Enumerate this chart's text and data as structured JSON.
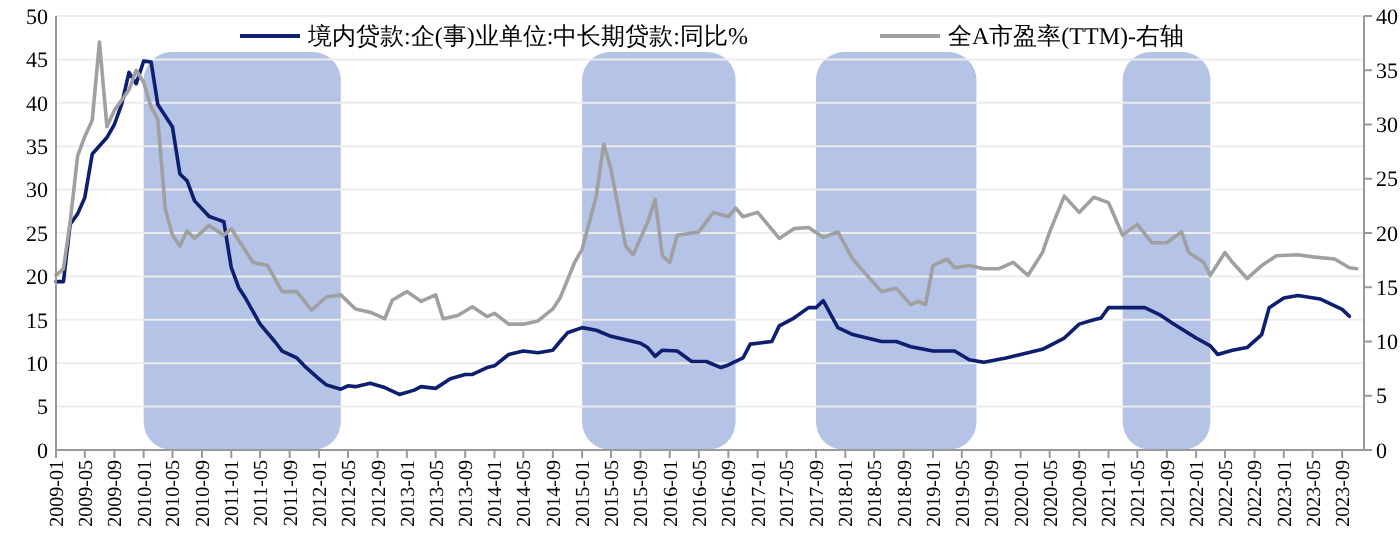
{
  "chart_data": {
    "type": "line",
    "xlim": [
      "2009-01",
      "2023-12"
    ],
    "xticks": [
      "2009-01",
      "2009-05",
      "2009-09",
      "2010-01",
      "2010-05",
      "2010-09",
      "2011-01",
      "2011-05",
      "2011-09",
      "2012-01",
      "2012-05",
      "2012-09",
      "2013-01",
      "2013-05",
      "2013-09",
      "2014-01",
      "2014-05",
      "2014-09",
      "2015-01",
      "2015-05",
      "2015-09",
      "2016-01",
      "2016-05",
      "2016-09",
      "2017-01",
      "2017-05",
      "2017-09",
      "2018-01",
      "2018-05",
      "2018-09",
      "2019-01",
      "2019-05",
      "2019-09",
      "2020-01",
      "2020-05",
      "2020-09",
      "2021-01",
      "2021-05",
      "2021-09",
      "2022-01",
      "2022-05",
      "2022-09",
      "2023-01",
      "2023-05",
      "2023-09"
    ],
    "ylim": [
      0,
      50
    ],
    "yticks": [
      0,
      5,
      10,
      15,
      20,
      25,
      30,
      35,
      40,
      45,
      50
    ],
    "y2lim": [
      0,
      40
    ],
    "y2ticks": [
      0,
      5,
      10,
      15,
      20,
      25,
      30,
      35,
      40
    ],
    "grid": "y",
    "legend": "top",
    "line_style": "solid",
    "marker": "none",
    "bands": [
      {
        "axis": "x",
        "from": "2010-01",
        "to": "2012-04",
        "color": "#b4c3e6"
      },
      {
        "axis": "x",
        "from": "2015-01",
        "to": "2016-10",
        "color": "#b4c3e6"
      },
      {
        "axis": "x",
        "from": "2017-09",
        "to": "2019-07",
        "color": "#b4c3e6"
      },
      {
        "axis": "x",
        "from": "2021-03",
        "to": "2022-03",
        "color": "#b4c3e6"
      }
    ],
    "series": [
      {
        "name": "境内贷款:企(事)业单位:中长期贷款:同比%",
        "color": "#0d1f6e",
        "axis": "y",
        "x": [
          "2009-01",
          "2009-02",
          "2009-03",
          "2009-04",
          "2009-05",
          "2009-06",
          "2009-08",
          "2009-09",
          "2009-10",
          "2009-11",
          "2009-12",
          "2010-01",
          "2010-02",
          "2010-03",
          "2010-05",
          "2010-06",
          "2010-07",
          "2010-08",
          "2010-10",
          "2010-11",
          "2010-12",
          "2011-01",
          "2011-02",
          "2011-03",
          "2011-05",
          "2011-07",
          "2011-08",
          "2011-10",
          "2011-11",
          "2012-01",
          "2012-02",
          "2012-04",
          "2012-05",
          "2012-06",
          "2012-08",
          "2012-10",
          "2012-12",
          "2013-02",
          "2013-03",
          "2013-05",
          "2013-07",
          "2013-09",
          "2013-10",
          "2013-12",
          "2014-01",
          "2014-03",
          "2014-05",
          "2014-07",
          "2014-09",
          "2014-10",
          "2014-11",
          "2015-01",
          "2015-03",
          "2015-05",
          "2015-06",
          "2015-09",
          "2015-10",
          "2015-11",
          "2015-12",
          "2016-02",
          "2016-04",
          "2016-06",
          "2016-08",
          "2016-09",
          "2016-11",
          "2016-12",
          "2017-03",
          "2017-04",
          "2017-06",
          "2017-08",
          "2017-09",
          "2017-10",
          "2017-12",
          "2018-02",
          "2018-06",
          "2018-08",
          "2018-10",
          "2019-01",
          "2019-04",
          "2019-06",
          "2019-08",
          "2019-11",
          "2020-01",
          "2020-04",
          "2020-07",
          "2020-09",
          "2020-11",
          "2020-12",
          "2021-01",
          "2021-06",
          "2021-08",
          "2021-10",
          "2022-01",
          "2022-03",
          "2022-04",
          "2022-06",
          "2022-08",
          "2022-10",
          "2022-11",
          "2023-01",
          "2023-03",
          "2023-06",
          "2023-08",
          "2023-09",
          "2023-10"
        ],
        "values": [
          19.4,
          19.4,
          26.0,
          27.2,
          29.1,
          34.1,
          36.0,
          37.5,
          39.8,
          43.5,
          42.2,
          44.8,
          44.7,
          39.8,
          37.2,
          31.8,
          31.0,
          28.7,
          26.9,
          26.6,
          26.3,
          21.0,
          18.7,
          17.5,
          14.5,
          12.5,
          11.4,
          10.6,
          9.7,
          8.2,
          7.5,
          7.0,
          7.4,
          7.3,
          7.7,
          7.2,
          6.4,
          6.9,
          7.3,
          7.1,
          8.2,
          8.7,
          8.7,
          9.5,
          9.7,
          11.0,
          11.4,
          11.2,
          11.5,
          12.5,
          13.5,
          14.1,
          13.8,
          13.1,
          12.9,
          12.3,
          11.8,
          10.8,
          11.5,
          11.4,
          10.2,
          10.2,
          9.5,
          9.8,
          10.6,
          12.2,
          12.5,
          14.3,
          15.2,
          16.4,
          16.4,
          17.2,
          14.1,
          13.3,
          12.5,
          12.5,
          11.9,
          11.4,
          11.4,
          10.4,
          10.1,
          10.6,
          11.0,
          11.6,
          12.9,
          14.5,
          15.0,
          15.2,
          16.4,
          16.4,
          15.6,
          14.5,
          12.9,
          12.0,
          11.0,
          11.5,
          11.8,
          13.3,
          16.4,
          17.5,
          17.8,
          17.4,
          16.6,
          16.2,
          15.4
        ]
      },
      {
        "name": "全A市盈率(TTM)-右轴",
        "color": "#a0a0a0",
        "axis": "y2",
        "x": [
          "2009-01",
          "2009-02",
          "2009-03",
          "2009-04",
          "2009-05",
          "2009-06",
          "2009-07",
          "2009-08",
          "2009-09",
          "2009-11",
          "2009-12",
          "2010-01",
          "2010-02",
          "2010-03",
          "2010-04",
          "2010-05",
          "2010-06",
          "2010-07",
          "2010-08",
          "2010-10",
          "2010-12",
          "2011-01",
          "2011-04",
          "2011-06",
          "2011-08",
          "2011-10",
          "2011-12",
          "2012-02",
          "2012-04",
          "2012-06",
          "2012-08",
          "2012-10",
          "2012-11",
          "2013-01",
          "2013-03",
          "2013-05",
          "2013-06",
          "2013-08",
          "2013-10",
          "2013-12",
          "2014-01",
          "2014-03",
          "2014-05",
          "2014-07",
          "2014-09",
          "2014-10",
          "2014-12",
          "2015-01",
          "2015-03",
          "2015-04",
          "2015-05",
          "2015-07",
          "2015-08",
          "2015-10",
          "2015-11",
          "2015-12",
          "2016-01",
          "2016-02",
          "2016-05",
          "2016-07",
          "2016-09",
          "2016-10",
          "2016-11",
          "2017-01",
          "2017-04",
          "2017-06",
          "2017-08",
          "2017-10",
          "2017-12",
          "2018-02",
          "2018-04",
          "2018-06",
          "2018-08",
          "2018-10",
          "2018-11",
          "2018-12",
          "2019-01",
          "2019-03",
          "2019-04",
          "2019-06",
          "2019-08",
          "2019-10",
          "2019-12",
          "2020-02",
          "2020-04",
          "2020-05",
          "2020-07",
          "2020-09",
          "2020-11",
          "2021-01",
          "2021-03",
          "2021-05",
          "2021-07",
          "2021-09",
          "2021-11",
          "2021-12",
          "2022-02",
          "2022-03",
          "2022-05",
          "2022-06",
          "2022-08",
          "2022-10",
          "2022-12",
          "2023-03",
          "2023-05",
          "2023-08",
          "2023-10",
          "2023-11"
        ],
        "values": [
          16.1,
          16.7,
          21.0,
          27.1,
          28.9,
          30.4,
          37.6,
          29.8,
          31.3,
          33.2,
          35.0,
          33.9,
          31.6,
          30.5,
          22.2,
          19.8,
          18.8,
          20.2,
          19.5,
          20.7,
          19.8,
          20.4,
          17.3,
          17.0,
          14.6,
          14.6,
          12.9,
          14.1,
          14.3,
          13.0,
          12.7,
          12.1,
          13.8,
          14.6,
          13.7,
          14.3,
          12.1,
          12.4,
          13.2,
          12.3,
          12.6,
          11.6,
          11.6,
          11.9,
          13.0,
          14.0,
          17.3,
          18.5,
          23.4,
          28.2,
          25.9,
          18.8,
          18.0,
          21.0,
          23.1,
          17.9,
          17.3,
          19.8,
          20.1,
          21.9,
          21.5,
          22.3,
          21.5,
          21.9,
          19.5,
          20.4,
          20.5,
          19.6,
          20.1,
          17.6,
          16.1,
          14.6,
          14.9,
          13.4,
          13.7,
          13.4,
          17.0,
          17.6,
          16.8,
          17.0,
          16.7,
          16.7,
          17.3,
          16.1,
          18.2,
          20.1,
          23.4,
          21.9,
          23.3,
          22.8,
          19.8,
          20.8,
          19.1,
          19.1,
          20.1,
          18.2,
          17.3,
          16.1,
          18.2,
          17.3,
          15.8,
          17.0,
          17.9,
          18.0,
          17.8,
          17.6,
          16.8,
          16.7
        ]
      }
    ]
  }
}
